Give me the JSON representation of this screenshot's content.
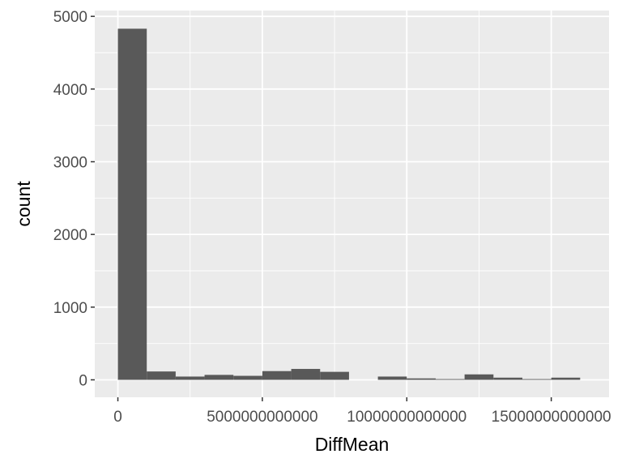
{
  "chart_data": {
    "type": "bar",
    "xlabel": "DiffMean",
    "ylabel": "count",
    "x_ticks": [
      {
        "value": 0,
        "label": "0"
      },
      {
        "value": 5000000000000,
        "label": "5000000000000"
      },
      {
        "value": 10000000000000,
        "label": "10000000000000"
      },
      {
        "value": 15000000000000,
        "label": "15000000000000"
      }
    ],
    "y_ticks": [
      {
        "value": 0,
        "label": "0"
      },
      {
        "value": 1000,
        "label": "1000"
      },
      {
        "value": 2000,
        "label": "2000"
      },
      {
        "value": 3000,
        "label": "3000"
      },
      {
        "value": 4000,
        "label": "4000"
      },
      {
        "value": 5000,
        "label": "5000"
      }
    ],
    "xlim": [
      -800000000000,
      17000000000000
    ],
    "ylim": [
      -240,
      5080
    ],
    "bins": [
      {
        "x0": 0,
        "x1": 1000000000000,
        "count": 4830
      },
      {
        "x0": 1000000000000,
        "x1": 2000000000000,
        "count": 115
      },
      {
        "x0": 2000000000000,
        "x1": 3000000000000,
        "count": 45
      },
      {
        "x0": 3000000000000,
        "x1": 4000000000000,
        "count": 68
      },
      {
        "x0": 4000000000000,
        "x1": 5000000000000,
        "count": 55
      },
      {
        "x0": 5000000000000,
        "x1": 6000000000000,
        "count": 120
      },
      {
        "x0": 6000000000000,
        "x1": 7000000000000,
        "count": 150
      },
      {
        "x0": 7000000000000,
        "x1": 8000000000000,
        "count": 110
      },
      {
        "x0": 8000000000000,
        "x1": 9000000000000,
        "count": 0
      },
      {
        "x0": 9000000000000,
        "x1": 10000000000000,
        "count": 45
      },
      {
        "x0": 10000000000000,
        "x1": 11000000000000,
        "count": 20
      },
      {
        "x0": 11000000000000,
        "x1": 12000000000000,
        "count": 10
      },
      {
        "x0": 12000000000000,
        "x1": 13000000000000,
        "count": 75
      },
      {
        "x0": 13000000000000,
        "x1": 14000000000000,
        "count": 30
      },
      {
        "x0": 14000000000000,
        "x1": 15000000000000,
        "count": 10
      },
      {
        "x0": 15000000000000,
        "x1": 16000000000000,
        "count": 30
      }
    ],
    "grid": true,
    "legend": "none",
    "colors": {
      "panel": "#ebebeb",
      "grid_major": "#ffffff",
      "bar_fill": "#595959",
      "tick": "#333333",
      "tick_label": "#4d4d4d",
      "axis_title": "#000000"
    }
  }
}
